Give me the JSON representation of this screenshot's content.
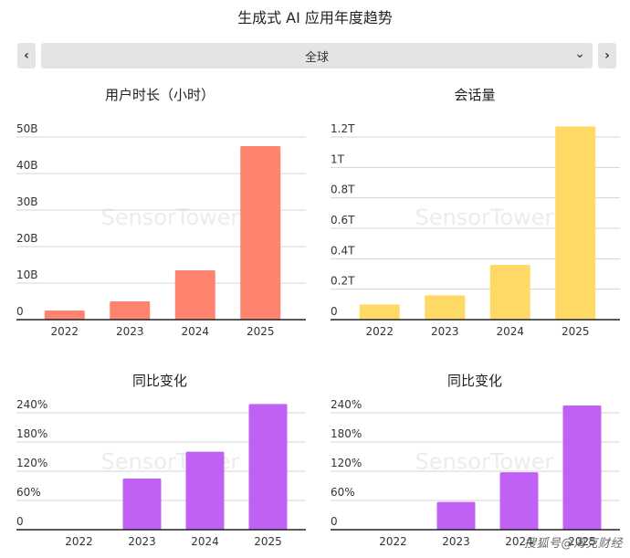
{
  "page": {
    "title": "生成式 AI 应用年度趋势",
    "region_select": {
      "value": "全球"
    },
    "watermark": "SensorTower",
    "footer_watermark": "搜狐号@海克财经",
    "icons": {
      "prev": "chevron-left-icon",
      "next": "chevron-right-icon",
      "dropdown": "chevron-down-icon"
    }
  },
  "chart_data": [
    {
      "id": "hours",
      "type": "bar",
      "title": "用户时长（小时）",
      "categories": [
        "2022",
        "2023",
        "2024",
        "2025"
      ],
      "values": [
        2.5,
        5,
        13.5,
        47.5
      ],
      "yticks": [
        0,
        10,
        20,
        30,
        40,
        50
      ],
      "ytick_labels": [
        "0",
        "10B",
        "20B",
        "30B",
        "40B",
        "50B"
      ],
      "ylim": [
        0,
        50
      ],
      "color": "#FF8470",
      "grid": true
    },
    {
      "id": "sessions",
      "type": "bar",
      "title": "会话量",
      "categories": [
        "2022",
        "2023",
        "2024",
        "2025"
      ],
      "values": [
        0.1,
        0.16,
        0.36,
        1.27
      ],
      "yticks": [
        0,
        0.2,
        0.4,
        0.6,
        0.8,
        1,
        1.2
      ],
      "ytick_labels": [
        "0",
        "0.2T",
        "0.4T",
        "0.6T",
        "0.8T",
        "1T",
        "1.2T"
      ],
      "ylim": [
        0,
        1.2
      ],
      "color": "#FFD966",
      "grid": true
    },
    {
      "id": "hours_yoy",
      "type": "bar",
      "title": "同比变化",
      "categories": [
        "2022",
        "2023",
        "2024",
        "2025"
      ],
      "values": [
        0,
        105,
        160,
        258
      ],
      "yticks": [
        0,
        60,
        120,
        180,
        240
      ],
      "ytick_labels": [
        "0",
        "60%",
        "120%",
        "180%",
        "240%"
      ],
      "ylim": [
        0,
        240
      ],
      "color": "#C060F5",
      "grid": true
    },
    {
      "id": "sessions_yoy",
      "type": "bar",
      "title": "同比变化",
      "categories": [
        "2022",
        "2023",
        "2024",
        "2025"
      ],
      "values": [
        0,
        57,
        118,
        255
      ],
      "yticks": [
        0,
        60,
        120,
        180,
        240
      ],
      "ytick_labels": [
        "0",
        "60%",
        "120%",
        "180%",
        "240%"
      ],
      "ylim": [
        0,
        240
      ],
      "color": "#C060F5",
      "grid": true
    }
  ]
}
